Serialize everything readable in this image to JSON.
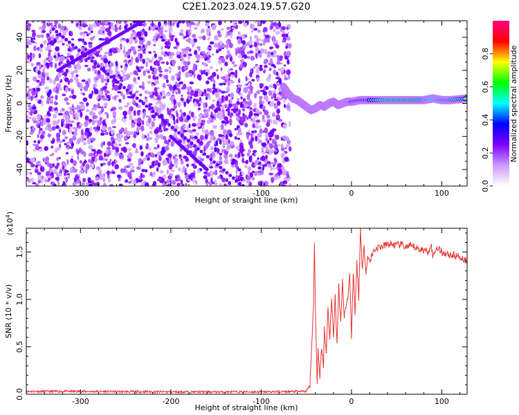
{
  "title": "C2E1.2023.024.19.57.G20",
  "chart_data": [
    {
      "type": "heatmap",
      "xlabel": "Height of straight line (km)",
      "ylabel": "Frequency (Hz)",
      "xlim": [
        -360,
        128
      ],
      "ylim": [
        -50,
        50
      ],
      "xticks": [
        -300,
        -200,
        -100,
        0,
        100
      ],
      "xtick_labels": [
        "-300",
        "-200",
        "-100",
        "0",
        "100"
      ],
      "yticks": [
        -40,
        -20,
        0,
        20,
        40
      ],
      "ytick_labels": [
        "-40",
        "-20",
        "0",
        "20",
        "40"
      ],
      "noise_region_x": [
        -360,
        -68
      ],
      "colorbar": {
        "label": "Normalized spectral amplitude",
        "range": [
          0,
          1
        ],
        "ticks": [
          0.0,
          0.2,
          0.4,
          0.6,
          0.8
        ],
        "tick_labels": [
          "0.0",
          "0.2",
          "0.4",
          "0.6",
          "0.8"
        ],
        "colors": [
          "#ffffff",
          "#cc99ff",
          "#7f00ff",
          "#0000ff",
          "#00ffff",
          "#00ff00",
          "#ffff00",
          "#ff0000",
          "#ff0080"
        ]
      },
      "ridge": {
        "x": [
          -75,
          -70,
          -65,
          -60,
          -55,
          -50,
          -45,
          -40,
          -35,
          -30,
          -25,
          -20,
          -15,
          -10,
          -5,
          0,
          10,
          20,
          40,
          60,
          80,
          90,
          100,
          110,
          128
        ],
        "freq": [
          10,
          6,
          3,
          2,
          0,
          -2,
          -4,
          -3,
          -1,
          -2,
          0,
          1,
          -1,
          0,
          1,
          1,
          2,
          2,
          2,
          2,
          2,
          3,
          2,
          2,
          3
        ],
        "amp": [
          0.3,
          0.4,
          0.45,
          0.45,
          0.5,
          0.45,
          0.4,
          0.45,
          0.5,
          0.5,
          0.55,
          0.6,
          0.55,
          0.6,
          0.6,
          0.55,
          0.6,
          0.65,
          0.85,
          0.85,
          0.8,
          0.9,
          0.8,
          0.8,
          0.7
        ]
      }
    },
    {
      "type": "line",
      "xlabel": "Height of straight line (km)",
      "ylabel": "SNR (10 * v/v)",
      "scale_label": "(x10",
      "scale_exp": "4",
      "scale_close": ")",
      "xlim": [
        -360,
        128
      ],
      "ylim": [
        0,
        1.75
      ],
      "xticks": [
        -300,
        -200,
        -100,
        0,
        100
      ],
      "xtick_labels": [
        "-300",
        "-200",
        "-100",
        "0",
        "100"
      ],
      "yticks": [
        0.0,
        0.5,
        1.0,
        1.5
      ],
      "ytick_labels": [
        "0.0",
        "0.5",
        "1.0",
        "1.5"
      ],
      "color": "#e83030",
      "x": [
        -360,
        -300,
        -200,
        -100,
        -50,
        -46,
        -44,
        -42,
        -41,
        -40,
        -39,
        -38,
        -37,
        -35,
        -33,
        -31,
        -30,
        -28,
        -26,
        -24,
        -22,
        -20,
        -18,
        -16,
        -14,
        -12,
        -10,
        -8,
        -6,
        -4,
        -2,
        0,
        2,
        4,
        6,
        8,
        10,
        12,
        14,
        16,
        18,
        20,
        25,
        30,
        35,
        40,
        45,
        50,
        55,
        60,
        65,
        70,
        75,
        80,
        85,
        88,
        90,
        92,
        95,
        100,
        105,
        110,
        115,
        120,
        125,
        128
      ],
      "y": [
        0.03,
        0.03,
        0.025,
        0.025,
        0.03,
        0.1,
        0.5,
        0.95,
        1.6,
        0.9,
        0.55,
        0.1,
        0.45,
        0.2,
        0.5,
        0.3,
        0.7,
        0.45,
        0.9,
        0.6,
        1.0,
        0.6,
        1.05,
        0.5,
        1.15,
        0.75,
        1.2,
        0.8,
        0.95,
        1.0,
        1.3,
        0.6,
        1.3,
        0.85,
        1.4,
        1.0,
        1.75,
        1.3,
        1.55,
        1.3,
        1.45,
        1.4,
        1.52,
        1.55,
        1.56,
        1.58,
        1.58,
        1.57,
        1.58,
        1.55,
        1.56,
        1.55,
        1.53,
        1.52,
        1.5,
        1.6,
        1.45,
        1.5,
        1.55,
        1.5,
        1.48,
        1.47,
        1.46,
        1.45,
        1.42,
        1.4
      ]
    }
  ]
}
